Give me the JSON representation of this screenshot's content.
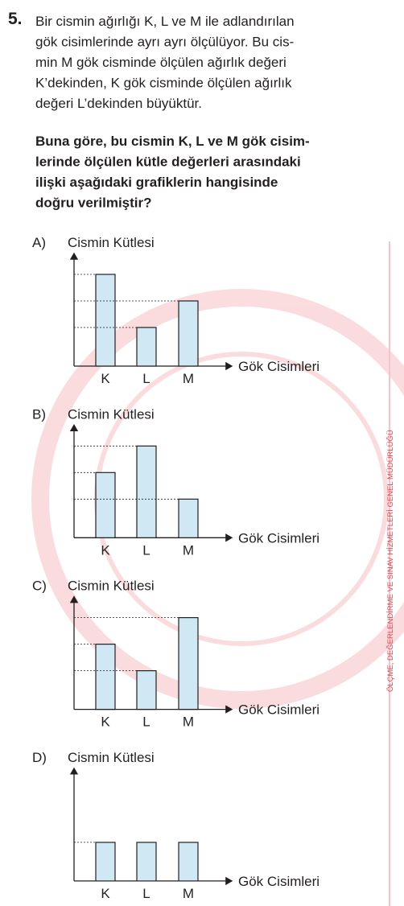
{
  "question": {
    "number": "5.",
    "lines": [
      "Bir cismin ağırlığı K, L ve M ile adlandırılan",
      "gök cisimlerinde ayrı ayrı ölçülüyor. Bu cis-",
      "min M gök cisminde ölçülen ağırlık değeri",
      "K’dekinden, K gök cisminde ölçülen ağırlık",
      "değeri L’dekinden büyüktür."
    ],
    "prompt": [
      "Buna göre, bu cismin K, L ve M gök cisim-",
      "lerinde ölçülen kütle değerleri arasındaki",
      "ilişki aşağıdaki grafiklerin hangisinde",
      "doğru verilmiştir?"
    ]
  },
  "options": [
    {
      "label": "A)",
      "y_label": "Cismin Kütlesi",
      "x_label": "Gök Cisimleri",
      "categories": [
        "K",
        "L",
        "M"
      ],
      "values": [
        3,
        1,
        2
      ]
    },
    {
      "label": "B)",
      "y_label": "Cismin Kütlesi",
      "x_label": "Gök Cisimleri",
      "categories": [
        "K",
        "L",
        "M"
      ],
      "values": [
        2,
        3,
        1
      ]
    },
    {
      "label": "C)",
      "y_label": "Cismin Kütlesi",
      "x_label": "Gök Cisimleri",
      "categories": [
        "K",
        "L",
        "M"
      ],
      "values": [
        2,
        1,
        3
      ]
    },
    {
      "label": "D)",
      "y_label": "Cismin Kütlesi",
      "x_label": "Gök Cisimleri",
      "categories": [
        "K",
        "L",
        "M"
      ],
      "values": [
        1,
        1,
        1
      ]
    }
  ],
  "side_text": "ÖLÇME, DEĞERLENDİRME VE SINAV HİZMETLERİ GENEL MÜDÜRLÜĞÜ"
}
